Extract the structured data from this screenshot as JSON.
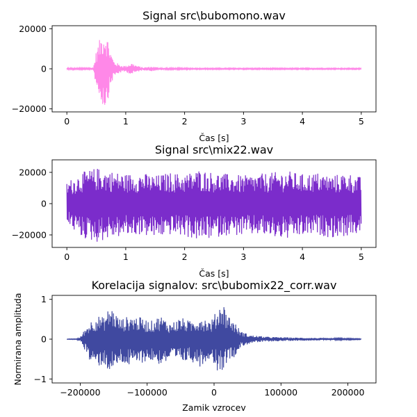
{
  "chart_data": [
    {
      "type": "line",
      "title": "Signal src\\bubomono.wav",
      "xlabel": "Čas [s]",
      "ylabel": "",
      "xlim": [
        -0.25,
        5.25
      ],
      "ylim": [
        -21500,
        21500
      ],
      "xticks": [
        0,
        1,
        2,
        3,
        4,
        5
      ],
      "xtick_labels": [
        "0",
        "1",
        "2",
        "3",
        "4",
        "5"
      ],
      "yticks": [
        20000,
        0,
        -20000
      ],
      "ytick_labels": [
        "20000",
        "0",
        "−20000"
      ],
      "color": "#ff88e8",
      "grid": false,
      "envelope": {
        "x": [
          0,
          0.3,
          0.45,
          0.5,
          0.55,
          0.6,
          0.65,
          0.7,
          0.75,
          0.8,
          0.9,
          1.0,
          1.1,
          1.2,
          1.3,
          1.45,
          1.55,
          1.7,
          2.0,
          2.5,
          3.0,
          4.0,
          5.0
        ],
        "max": [
          400,
          400,
          600,
          9000,
          14000,
          18000,
          19500,
          15000,
          8000,
          4000,
          2000,
          1500,
          3000,
          1500,
          700,
          1200,
          700,
          400,
          350,
          300,
          300,
          300,
          300
        ],
        "min": [
          -400,
          -400,
          -600,
          -9000,
          -14000,
          -18000,
          -20000,
          -15000,
          -8000,
          -4000,
          -2000,
          -1500,
          -3000,
          -1500,
          -700,
          -1200,
          -700,
          -400,
          -350,
          -300,
          -300,
          -300,
          -300
        ]
      }
    },
    {
      "type": "line",
      "title": "Signal src\\mix22.wav",
      "xlabel": "Čas [s]",
      "ylabel": "",
      "xlim": [
        -0.25,
        5.25
      ],
      "ylim": [
        -28000,
        28000
      ],
      "xticks": [
        0,
        1,
        2,
        3,
        4,
        5
      ],
      "xtick_labels": [
        "0",
        "1",
        "2",
        "3",
        "4",
        "5"
      ],
      "yticks": [
        20000,
        0,
        -20000
      ],
      "ytick_labels": [
        "20000",
        "0",
        "−20000"
      ],
      "color": "#7b2ccb",
      "grid": false,
      "envelope": {
        "x": [
          0,
          0.25,
          0.5,
          0.75,
          1.0,
          1.25,
          1.5,
          1.75,
          2.0,
          2.25,
          2.5,
          2.75,
          3.0,
          3.25,
          3.5,
          3.75,
          4.0,
          4.25,
          4.5,
          4.75,
          5.0
        ],
        "max": [
          14000,
          20000,
          23000,
          21000,
          19000,
          20000,
          18000,
          20000,
          19000,
          22000,
          20000,
          19000,
          18000,
          19000,
          20000,
          21000,
          19000,
          20000,
          18000,
          20000,
          17000
        ],
        "min": [
          -13000,
          -22000,
          -25000,
          -22000,
          -21000,
          -20000,
          -22000,
          -20000,
          -21000,
          -24000,
          -22000,
          -20000,
          -21000,
          -20000,
          -22000,
          -23000,
          -21000,
          -20000,
          -22000,
          -21000,
          -19000
        ]
      }
    },
    {
      "type": "line",
      "title": "Korelacija signalov: src\\bubomix22_corr.wav",
      "xlabel": "Zamik vzrocev",
      "ylabel": "Normirana amplituda",
      "xlim": [
        -242000,
        242000
      ],
      "ylim": [
        -1.1,
        1.1
      ],
      "xticks": [
        -200000,
        -100000,
        0,
        100000,
        200000
      ],
      "xtick_labels": [
        "−200000",
        "−100000",
        "0",
        "100000",
        "200000"
      ],
      "yticks": [
        1,
        0,
        -1
      ],
      "ytick_labels": [
        "1",
        "0",
        "−1"
      ],
      "color": "#4049a0",
      "grid": false,
      "envelope": {
        "x": [
          -220000,
          -205000,
          -200000,
          -195000,
          -185000,
          -175000,
          -165000,
          -155000,
          -140000,
          -125000,
          -110000,
          -95000,
          -80000,
          -65000,
          -50000,
          -35000,
          -20000,
          -5000,
          5000,
          12000,
          20000,
          30000,
          40000,
          55000,
          80000,
          120000,
          160000,
          220000
        ],
        "max": [
          0.005,
          0.01,
          0.05,
          0.2,
          0.45,
          0.6,
          0.55,
          0.85,
          0.5,
          0.6,
          0.55,
          0.45,
          0.6,
          0.4,
          0.55,
          0.45,
          0.6,
          0.45,
          0.75,
          1.0,
          0.65,
          0.45,
          0.2,
          0.1,
          0.06,
          0.04,
          0.03,
          0.01
        ],
        "min": [
          -0.005,
          -0.01,
          -0.05,
          -0.2,
          -0.6,
          -0.7,
          -0.65,
          -0.85,
          -0.6,
          -0.7,
          -0.6,
          -0.55,
          -0.65,
          -0.55,
          -0.6,
          -0.55,
          -0.7,
          -0.45,
          -0.8,
          -0.8,
          -0.55,
          -0.45,
          -0.2,
          -0.1,
          -0.06,
          -0.04,
          -0.03,
          -0.01
        ]
      }
    }
  ]
}
